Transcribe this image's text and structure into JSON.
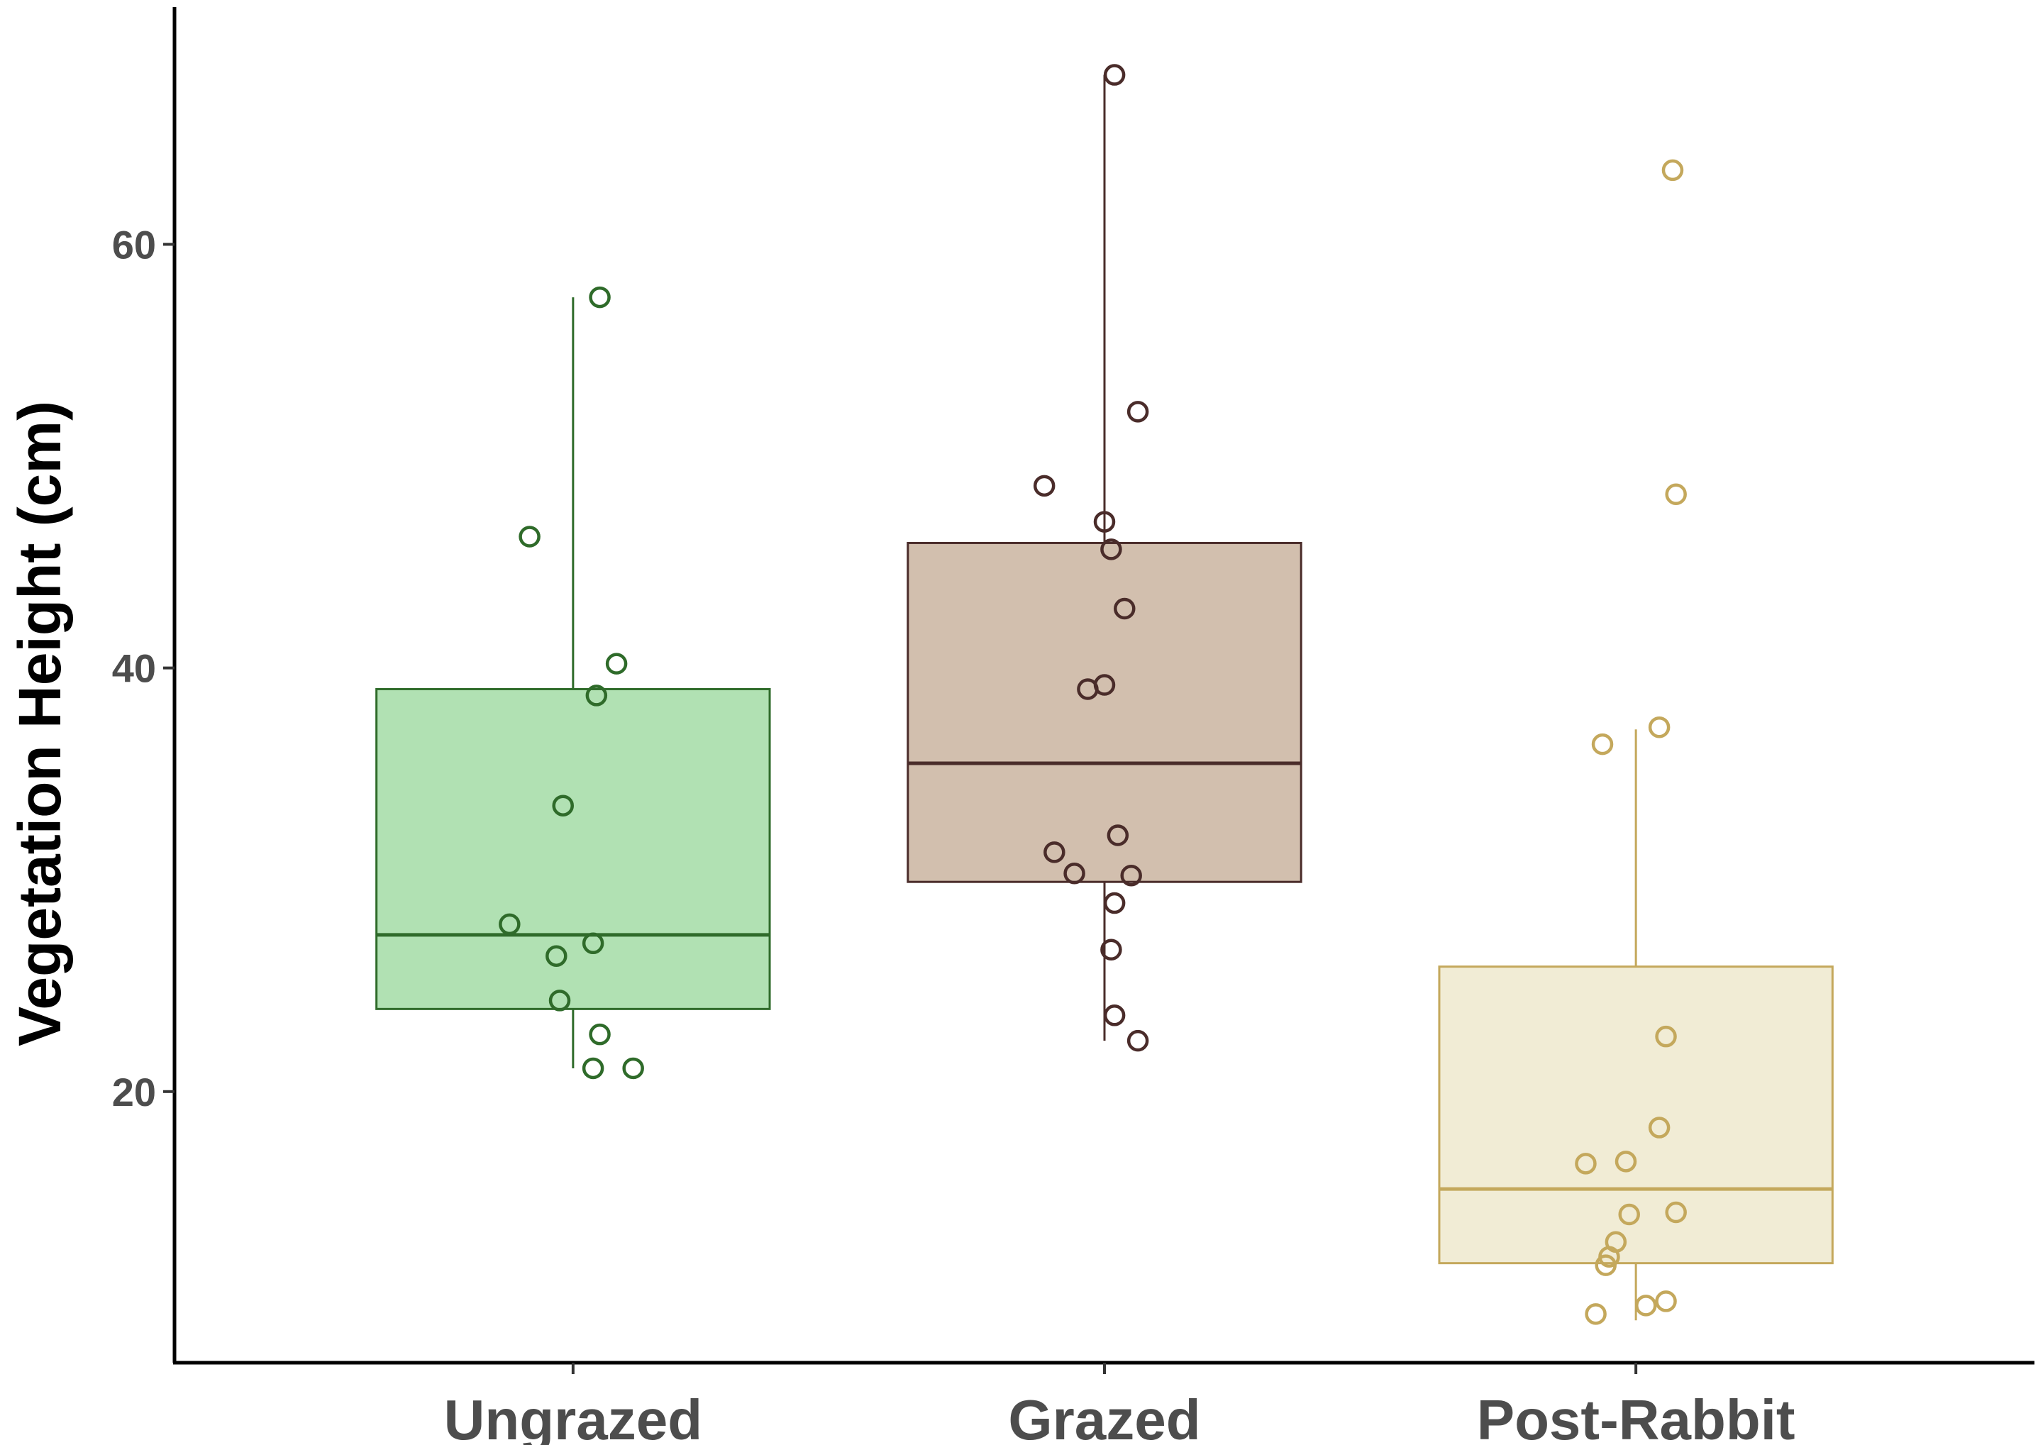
{
  "chart_data": {
    "type": "boxplot",
    "title": "",
    "xlabel": "",
    "ylabel": "Vegetation Height (cm)",
    "ylim": [
      7.2,
      71.2
    ],
    "yticks": [
      20,
      40,
      60
    ],
    "categories": [
      "Ungrazed",
      "Grazed",
      "Post-Rabbit"
    ],
    "series": [
      {
        "name": "Ungrazed",
        "color": "#2f6b2a",
        "fill": "#b1e1b3",
        "whisker_low": 21.1,
        "q1": 23.9,
        "median": 27.4,
        "q3": 39.0,
        "whisker_high": 57.5,
        "points": [
          57.5,
          46.2,
          40.2,
          38.7,
          33.5,
          27.9,
          27.0,
          26.4,
          24.3,
          22.7,
          21.1,
          21.1
        ],
        "jitter": [
          0.08,
          -0.13,
          0.13,
          0.07,
          -0.03,
          -0.19,
          0.06,
          -0.05,
          -0.04,
          0.08,
          0.06,
          0.18
        ]
      },
      {
        "name": "Grazed",
        "color": "#4a2c2a",
        "fill": "#d2bfae",
        "whisker_low": 22.4,
        "q1": 29.9,
        "median": 35.5,
        "q3": 45.9,
        "whisker_high": 68.0,
        "points": [
          68.0,
          52.1,
          48.6,
          46.9,
          45.6,
          42.8,
          39.2,
          39.0,
          32.1,
          31.3,
          30.3,
          30.2,
          28.9,
          26.7,
          23.6,
          22.4
        ],
        "jitter": [
          0.03,
          0.1,
          -0.18,
          0.0,
          0.02,
          0.06,
          0.0,
          -0.05,
          0.04,
          -0.15,
          -0.09,
          0.08,
          0.03,
          0.02,
          0.03,
          0.1
        ]
      },
      {
        "name": "Post-Rabbit",
        "color": "#c4a85c",
        "fill": "#f1ecd5",
        "whisker_low": 9.2,
        "q1": 11.9,
        "median": 15.4,
        "q3": 25.9,
        "whisker_high": 37.1,
        "points": [
          63.5,
          48.2,
          37.2,
          36.4,
          22.6,
          18.3,
          16.7,
          16.6,
          14.3,
          14.2,
          12.9,
          12.2,
          11.8,
          10.1,
          9.9,
          9.5
        ],
        "jitter": [
          0.11,
          0.12,
          0.07,
          -0.1,
          0.09,
          0.07,
          -0.03,
          -0.15,
          0.12,
          -0.02,
          -0.06,
          -0.08,
          -0.09,
          0.09,
          0.03,
          -0.12
        ]
      }
    ]
  }
}
